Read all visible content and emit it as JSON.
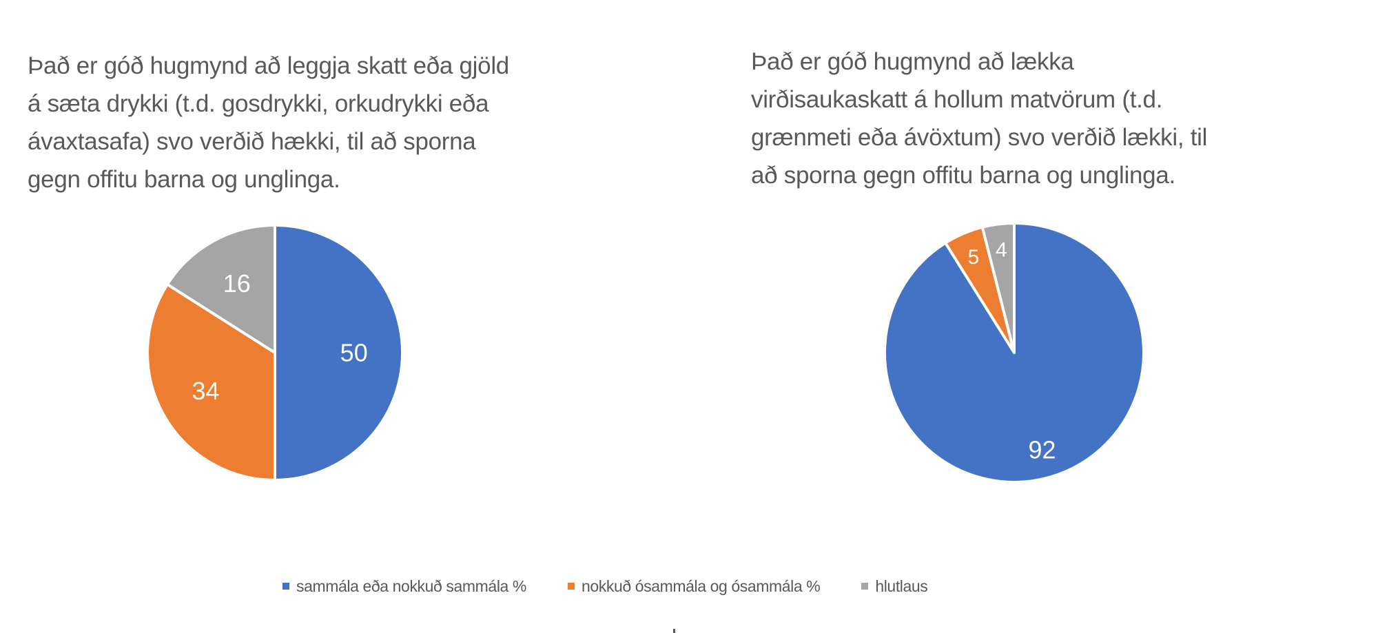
{
  "chart_data": [
    {
      "type": "pie",
      "title": "Það er góð hugmynd að leggja skatt eða gjöld á sæta drykki (t.d. gosdrykki, orkudrykki eða ávaxtasafa) svo verðið hækki, til að sporna gegn offitu barna og unglinga.",
      "title_lines": [
        "Það er góð hugmynd að leggja skatt eða gjöld",
        "á sæta drykki (t.d. gosdrykki, orkudrykki eða",
        "ávaxtasafa) svo verðið hækki, til að sporna",
        "gegn offitu barna og unglinga."
      ],
      "categories": [
        "sammála eða nokkuð sammála %",
        "nokkuð ósammála og ósammála %",
        "hlutlaus"
      ],
      "values": [
        50,
        34,
        16
      ],
      "colors": [
        "#4472C4",
        "#ED7D31",
        "#A5A5A5"
      ],
      "data_labels": true,
      "start_angle": 0,
      "direction": "clockwise",
      "legend_position": "bottom"
    },
    {
      "type": "pie",
      "title": "Það er góð hugmynd að lækka virðisaukaskatt á hollum matvörum (t.d. grænmeti eða ávöxtum) svo verðið lækki, til að sporna gegn offitu barna og unglinga.",
      "title_lines": [
        "Það er góð hugmynd að lækka",
        "virðisaukaskatt á hollum matvörum (t.d.",
        "grænmeti eða ávöxtum) svo verðið lækki, til",
        "að sporna gegn offitu barna og unglinga."
      ],
      "categories": [
        "sammála eða nokkuð sammála %",
        "nokkuð ósammála og ósammála %",
        "hlutlaus"
      ],
      "values": [
        92,
        5,
        4
      ],
      "colors": [
        "#4472C4",
        "#ED7D31",
        "#A5A5A5"
      ],
      "data_labels": true,
      "start_angle": 0,
      "direction": "clockwise",
      "legend_position": "bottom"
    }
  ],
  "legend": {
    "items": [
      {
        "label": "sammála eða nokkuð sammála %",
        "color": "#4472C4"
      },
      {
        "label": "nokkuð ósammála og ósammála %",
        "color": "#ED7D31"
      },
      {
        "label": "hlutlaus",
        "color": "#A5A5A5"
      }
    ]
  }
}
